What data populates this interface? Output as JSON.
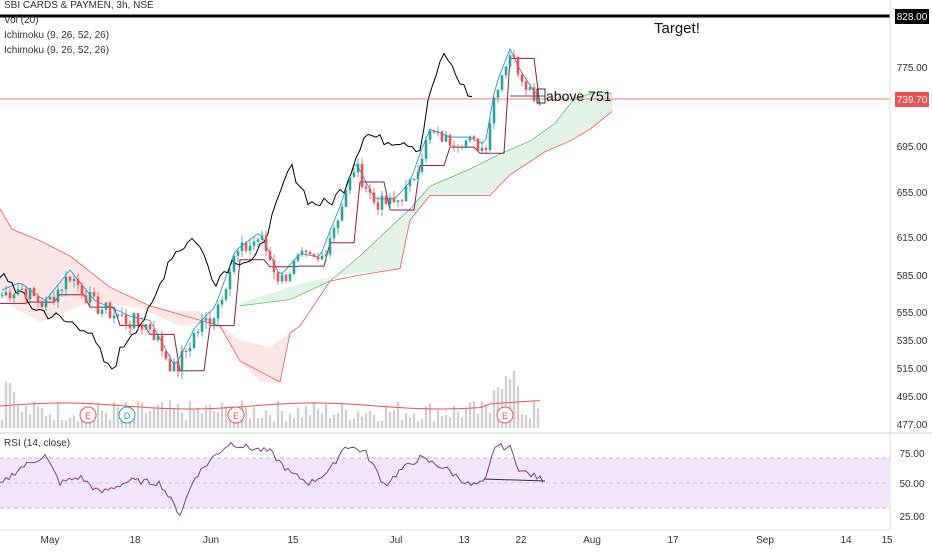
{
  "chart_data": {
    "type": "candlestick",
    "symbol_label": "SBI CARDS & PAYMEN, 3h, NSE",
    "indicators": [
      "Vol (20)",
      "Ichimoku (9, 26, 52, 26)",
      "Ichimoku (9, 26, 52, 26)"
    ],
    "price_axis": {
      "ticks": [
        477,
        495,
        515,
        535,
        555,
        585,
        615,
        655,
        695,
        775
      ],
      "top_label": "828.00",
      "current_label": "739.70",
      "current_value": 739.7
    },
    "time_axis": {
      "labels": [
        "May",
        "18",
        "Jun",
        "15",
        "Jul",
        "13",
        "22",
        "Aug",
        "17",
        "Sep",
        "14",
        "15"
      ]
    },
    "annotations": {
      "target": "Target!",
      "breakout": "above 751"
    },
    "event_markers": [
      "E",
      "D",
      "E",
      "E"
    ],
    "rsi": {
      "title": "RSI (14, close)",
      "ticks": [
        75,
        50,
        25
      ],
      "band": [
        30,
        70
      ]
    },
    "colors": {
      "up": "#26a69a",
      "down": "#ef5350",
      "rsi_line": "#7e3f8f",
      "rsi_band": "#f3e5fc",
      "kumo_green": "#e6f4ea",
      "kumo_red": "#fde8e8",
      "lagging": "#000000"
    }
  }
}
